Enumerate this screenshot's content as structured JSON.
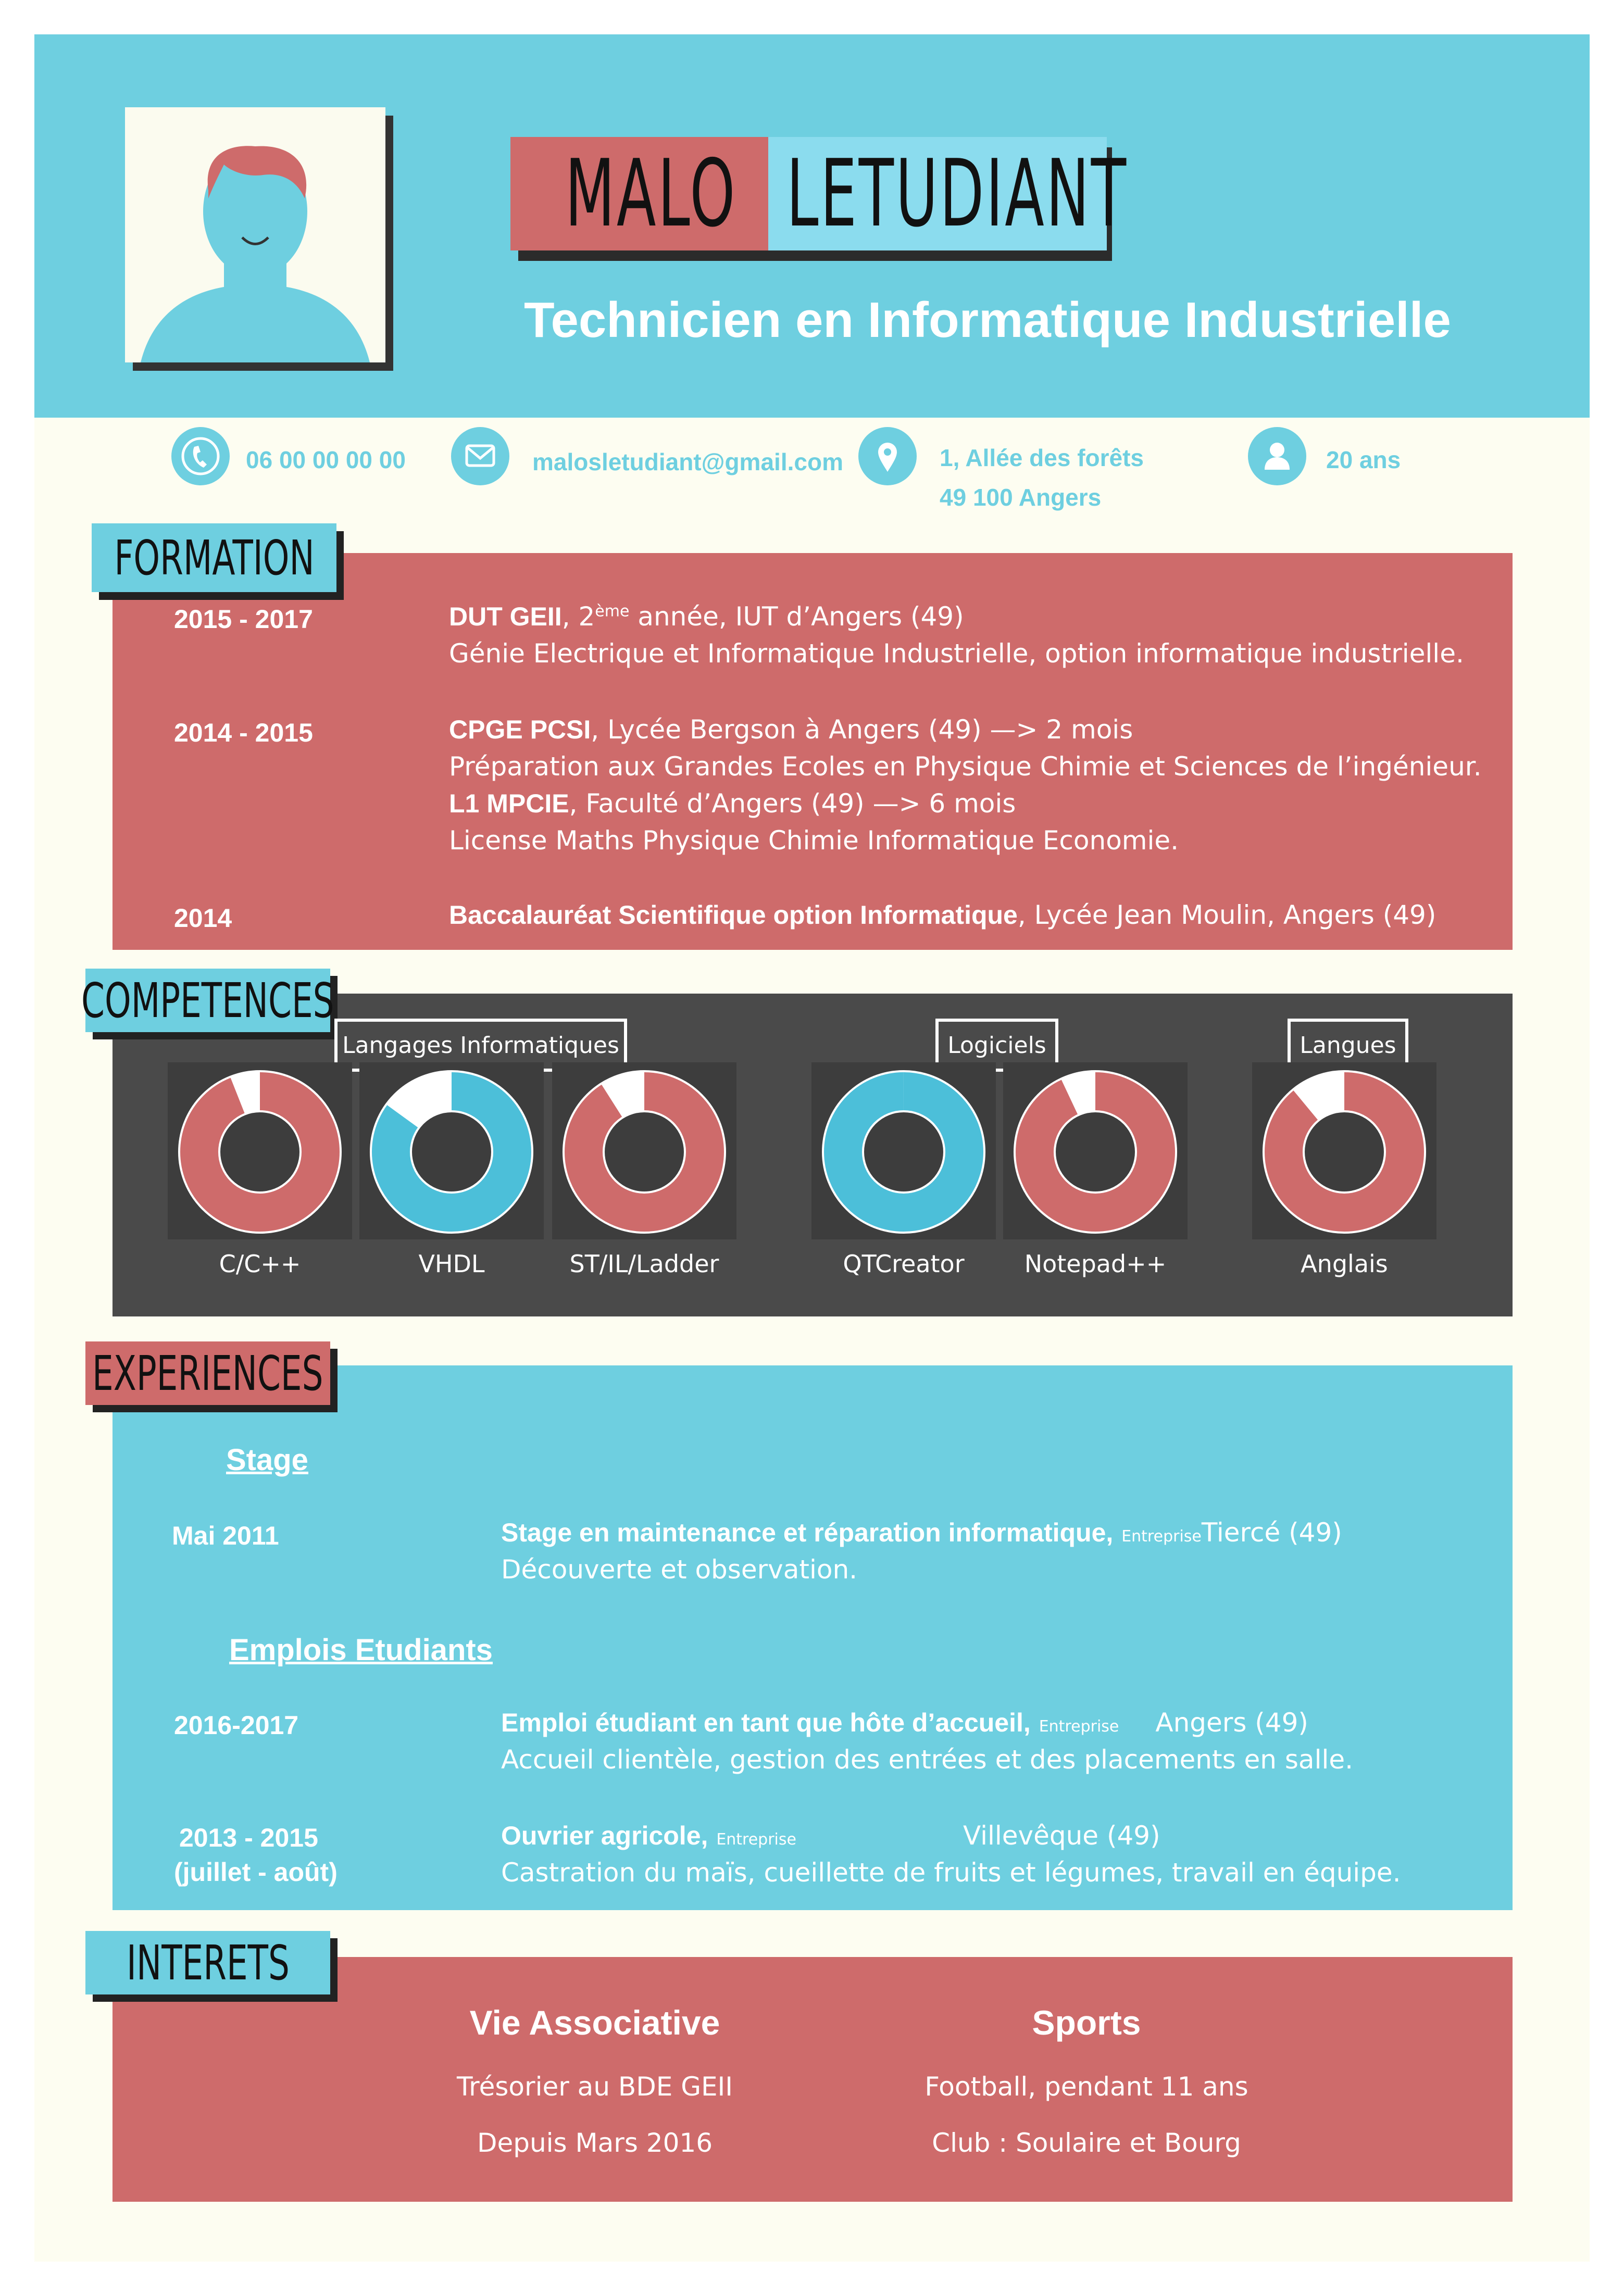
{
  "header": {
    "first_name": "MALO",
    "last_name": "LETUDIANT",
    "title": "Technicien en Informatique Industrielle",
    "colors": {
      "blue": "#6ecfe0",
      "red": "#ce6b6b",
      "dark": "#4a4a4a"
    }
  },
  "contact": {
    "phone": "06 00 00 00 00",
    "email": "malosletudiant@gmail.com",
    "address_line1": "1, Allée des forêts",
    "address_line2": "49 100 Angers",
    "age": "20 ans",
    "icons": [
      "phone-icon",
      "mail-icon",
      "location-pin-icon",
      "person-icon"
    ]
  },
  "formation": {
    "heading": "FORMATION",
    "entries": [
      {
        "date": "2015 - 2017",
        "degree": "DUT GEII",
        "degree_rest_a": ", 2",
        "degree_sup": "ème",
        "degree_rest_b": " année, IUT d’Angers (49)",
        "desc": "Génie Electrique et Informatique Industrielle, option informatique industrielle."
      },
      {
        "date": "2014 - 2015",
        "degree": "CPGE PCSI",
        "degree_rest": ", Lycée Bergson à Angers (49) —> 2 mois",
        "desc": "Préparation aux Grandes Ecoles en Physique Chimie et Sciences de l’ingénieur.",
        "degree2": "L1 MPCIE",
        "degree2_rest": ", Faculté d’Angers (49) —> 6 mois",
        "desc2": "License Maths Physique Chimie Informatique Economie."
      },
      {
        "date": "2014",
        "degree": "Baccalauréat Scientifique option Informatique",
        "degree_rest": ", Lycée Jean Moulin, Angers (49)"
      }
    ]
  },
  "competences": {
    "heading": "COMPETENCES",
    "groups": [
      {
        "label": "Langages Informatiques"
      },
      {
        "label": "Logiciels"
      },
      {
        "label": "Langues"
      }
    ],
    "skills": [
      {
        "name": "C/C++",
        "level": 0.94,
        "color": "#ce6b6b"
      },
      {
        "name": "VHDL",
        "level": 0.85,
        "color": "#4cbfd9"
      },
      {
        "name": "ST/IL/Ladder",
        "level": 0.91,
        "color": "#ce6b6b"
      },
      {
        "name": "QTCreator",
        "level": 1.0,
        "color": "#4cbfd9"
      },
      {
        "name": "Notepad++",
        "level": 0.93,
        "color": "#ce6b6b"
      },
      {
        "name": "Anglais",
        "level": 0.89,
        "color": "#ce6b6b"
      }
    ]
  },
  "experiences": {
    "heading": "EXPERIENCES",
    "stage_heading": "Stage",
    "stage": {
      "date": "Mai 2011",
      "title": "Stage  en maintenance et réparation informatique",
      "company_label": "Entreprise",
      "company": "Tiercé (49)",
      "desc": "Découverte et observation."
    },
    "jobs_heading": "Emplois Etudiants",
    "job1": {
      "date": "2016-2017",
      "title": "Emploi étudiant en tant que hôte d’accueil",
      "company_label": "Entreprise",
      "company": "Angers (49)",
      "desc": "Accueil clientèle, gestion des entrées et des placements en salle."
    },
    "job2": {
      "date_line1": "2013 - 2015",
      "date_line2": "(juillet - août)",
      "title": "Ouvrier agricole",
      "company_label": "Entreprise",
      "company": "Villevêque (49)",
      "desc": "Castration du maïs, cueillette de fruits et légumes, travail en équipe."
    }
  },
  "interets": {
    "heading": "INTERETS",
    "col1": {
      "title": "Vie Associative",
      "line1": "Trésorier au BDE GEII",
      "line2": "Depuis  Mars 2016"
    },
    "col2": {
      "title": "Sports",
      "line1": "Football, pendant 11 ans",
      "line2": "Club : Soulaire et Bourg"
    }
  }
}
